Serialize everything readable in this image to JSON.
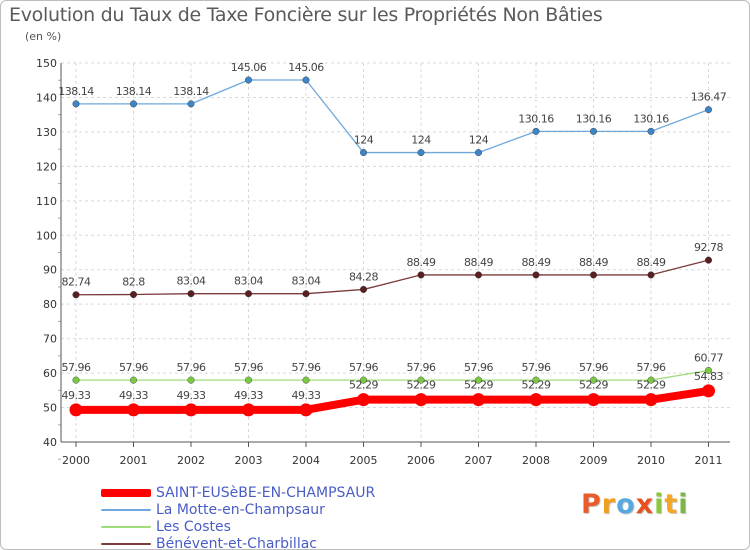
{
  "title": "Evolution du Taux de Taxe Foncière sur les Propriétés Non Bâties",
  "subtitle": "(en %)",
  "logo": {
    "text": "Proxiti",
    "letters": [
      {
        "ch": "P",
        "color": "#e85b2a"
      },
      {
        "ch": "r",
        "color": "#f0a020"
      },
      {
        "ch": "o",
        "color": "#58a8e0"
      },
      {
        "ch": "x",
        "color": "#e8501e"
      },
      {
        "ch": "i",
        "color": "#8cc63f"
      },
      {
        "ch": "t",
        "color": "#f5a623"
      },
      {
        "ch": "i",
        "color": "#7ab648"
      }
    ]
  },
  "chart_data": {
    "type": "line",
    "title": "Evolution du Taux de Taxe Foncière sur les Propriétés Non Bâties",
    "ylabel": "(en %)",
    "xlabel": "",
    "x": [
      "2000",
      "2001",
      "2002",
      "2003",
      "2004",
      "2005",
      "2006",
      "2007",
      "2008",
      "2009",
      "2010",
      "2011"
    ],
    "ylim": [
      40,
      150
    ],
    "yticks": [
      "40",
      "50",
      "60",
      "70",
      "80",
      "90",
      "100",
      "110",
      "120",
      "130",
      "140",
      "150"
    ],
    "grid": true,
    "legend_position": "bottom-left",
    "series": [
      {
        "name": "SAINT-EUSèBE-EN-CHAMPSAUR",
        "color": "#ff0000",
        "emphasis": true,
        "values": [
          49.33,
          49.33,
          49.33,
          49.33,
          49.33,
          52.29,
          52.29,
          52.29,
          52.29,
          52.29,
          52.29,
          54.83
        ],
        "labels": [
          "49.33",
          "49.33",
          "49.33",
          "49.33",
          "49.33",
          "52.29",
          "52.29",
          "52.29",
          "52.29",
          "52.29",
          "52.29",
          "54.83"
        ]
      },
      {
        "name": "La Motte-en-Champsaur",
        "color": "#6fa8dc",
        "marker_color": "#3d85c6",
        "values": [
          138.14,
          138.14,
          138.14,
          145.06,
          145.06,
          124,
          124,
          124,
          130.16,
          130.16,
          130.16,
          136.47
        ],
        "labels": [
          "138.14",
          "138.14",
          "138.14",
          "145.06",
          "145.06",
          "124",
          "124",
          "124",
          "130.16",
          "130.16",
          "130.16",
          "136.47"
        ]
      },
      {
        "name": "Les Costes",
        "color": "#9fdd7a",
        "marker_color": "#7ac943",
        "values": [
          57.96,
          57.96,
          57.96,
          57.96,
          57.96,
          57.96,
          57.96,
          57.96,
          57.96,
          57.96,
          57.96,
          60.77
        ],
        "labels": [
          "57.96",
          "57.96",
          "57.96",
          "57.96",
          "57.96",
          "57.96",
          "57.96",
          "57.96",
          "57.96",
          "57.96",
          "57.96",
          "60.77"
        ]
      },
      {
        "name": "Bénévent-et-Charbillac",
        "color": "#7b3b3b",
        "marker_color": "#5a1f1f",
        "values": [
          82.74,
          82.8,
          83.04,
          83.04,
          83.04,
          84.28,
          88.49,
          88.49,
          88.49,
          88.49,
          88.49,
          92.78
        ],
        "labels": [
          "82.74",
          "82.8",
          "83.04",
          "83.04",
          "83.04",
          "84.28",
          "88.49",
          "88.49",
          "88.49",
          "88.49",
          "88.49",
          "92.78"
        ]
      }
    ]
  }
}
